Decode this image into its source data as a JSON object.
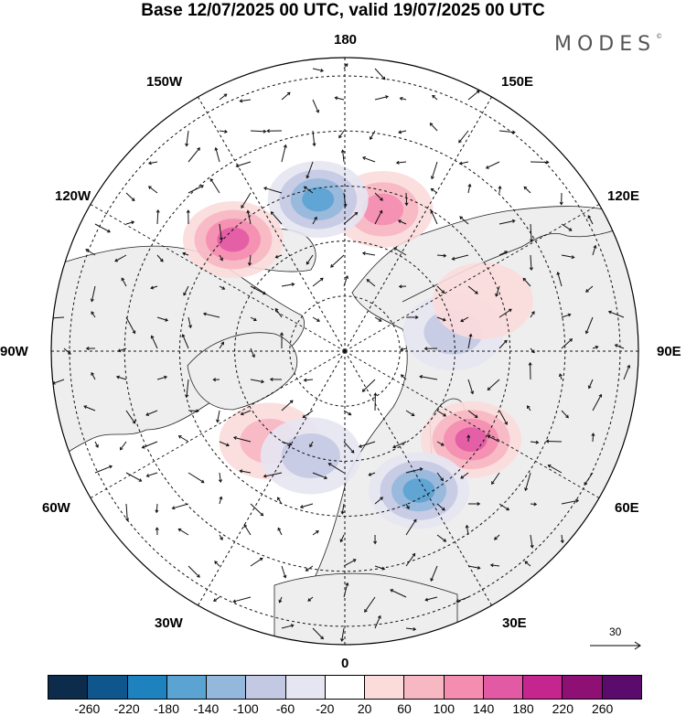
{
  "title": "Base 12/07/2025 00 UTC, valid 19/07/2025 00 UTC",
  "brand": "MODES",
  "brand_mark": "©",
  "map": {
    "projection": "polar-stereographic-north",
    "labels": {
      "top": "180",
      "bottom": "0",
      "left": "90W",
      "right": "90E",
      "upper_left_1": "150W",
      "upper_left_2": "120W",
      "lower_left_1": "60W",
      "lower_left_2": "30W",
      "upper_right_1": "150E",
      "upper_right_2": "120E",
      "lower_right_1": "60E",
      "lower_right_2": "30E"
    },
    "reference_vector": "30",
    "land_color": "#eeeeee",
    "ocean_color": "#ffffff",
    "anomalies": [
      {
        "lon": -165,
        "lat": 50,
        "value": 130
      },
      {
        "lon": 170,
        "lat": 48,
        "value": -160
      },
      {
        "lon": 135,
        "lat": 47,
        "value": 170
      },
      {
        "lon": -55,
        "lat": 48,
        "value": 160
      },
      {
        "lon": -28,
        "lat": 47,
        "value": -150
      },
      {
        "lon": 40,
        "lat": 58,
        "value": 80
      },
      {
        "lon": 18,
        "lat": 60,
        "value": -80
      },
      {
        "lon": -100,
        "lat": 60,
        "value": -70
      },
      {
        "lon": -110,
        "lat": 50,
        "value": 60
      }
    ]
  },
  "legend": {
    "colors": [
      "#0d2c4b",
      "#0e568b",
      "#1e82bf",
      "#5aa3d3",
      "#93b8dc",
      "#c4c9e3",
      "#e6e5f2",
      "#ffffff",
      "#fbdcdb",
      "#f7b7c3",
      "#f48db0",
      "#e25aa3",
      "#c5258f",
      "#8e1075",
      "#5b0b6c"
    ],
    "ticks": [
      "-260",
      "-220",
      "-180",
      "-140",
      "-100",
      "-60",
      "-20",
      "20",
      "60",
      "100",
      "140",
      "180",
      "220",
      "260"
    ]
  }
}
